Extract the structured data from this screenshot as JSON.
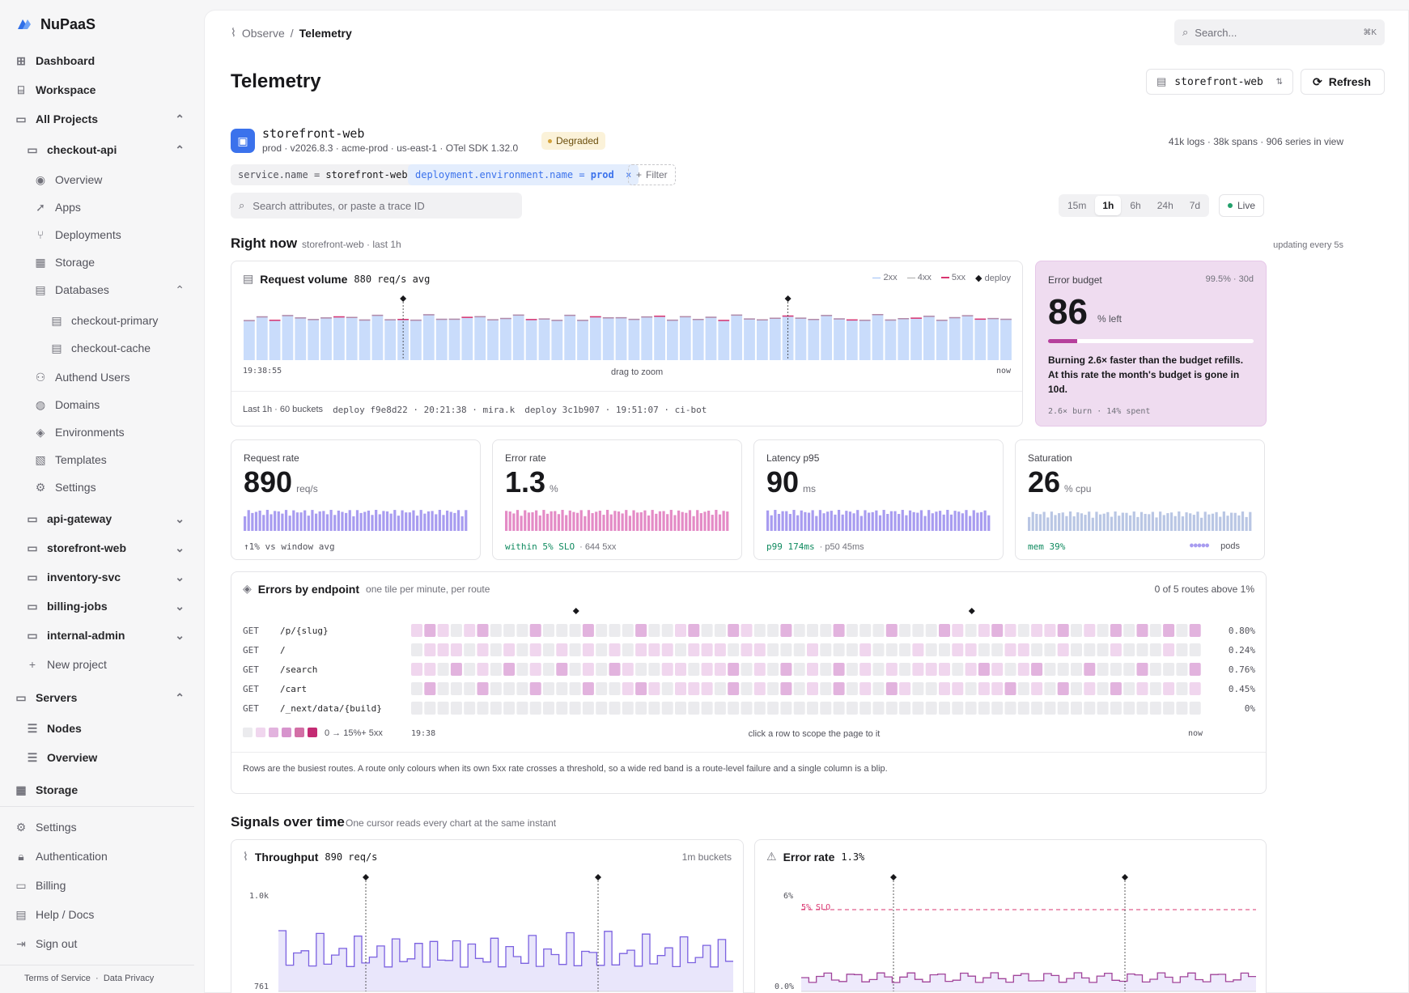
{
  "brand": {
    "name": "NuPaaS"
  },
  "sidebar": {
    "dashboard": "Dashboard",
    "workspace": "Workspace",
    "all_projects": "All Projects",
    "projects": [
      {
        "name": "checkout-api",
        "expanded": true
      },
      {
        "name": "api-gateway"
      },
      {
        "name": "storefront-web"
      },
      {
        "name": "inventory-svc"
      },
      {
        "name": "billing-jobs"
      },
      {
        "name": "internal-admin"
      }
    ],
    "checkout_items": [
      "Overview",
      "Apps",
      "Deployments",
      "Storage",
      "Databases"
    ],
    "databases": [
      "checkout-primary",
      "checkout-cache"
    ],
    "checkout_items2": [
      "Authend Users",
      "Domains",
      "Environments",
      "Templates",
      "Settings"
    ],
    "new_project": "New project",
    "servers": "Servers",
    "server_items": [
      "Nodes",
      "Overview"
    ],
    "storage": "Storage",
    "bottom": [
      "Settings",
      "Authentication",
      "Billing",
      "Help / Docs",
      "Sign out"
    ],
    "terms": "Terms of Service",
    "privacy": "Data Privacy",
    "sep": "·"
  },
  "header": {
    "breadcrumb_parent": "Observe",
    "breadcrumb_sep": "/",
    "breadcrumb_current": "Telemetry",
    "search_placeholder": "Search...",
    "search_kbd": "⌘K",
    "title": "Telemetry",
    "service_select": "storefront-web",
    "refresh": "Refresh"
  },
  "service": {
    "name": "storefront-web",
    "meta": "prod · v2026.8.3 · acme-prod · us-east-1 · OTel SDK 1.32.0",
    "status": "Degraded",
    "counts": "41k logs · 38k spans · 906 series in view"
  },
  "filters": [
    {
      "key": "service.name",
      "op": "=",
      "value": "storefront-web"
    },
    {
      "key": "deployment.environment.name",
      "op": "=",
      "value": "prod",
      "remove": "×"
    }
  ],
  "filter_add": "Filter",
  "attr_search_placeholder": "Search attributes, or paste a trace ID",
  "time_ranges": [
    "15m",
    "1h",
    "6h",
    "24h",
    "7d"
  ],
  "time_selected": "1h",
  "live": "Live",
  "right_now": {
    "title": "Right now",
    "subtitle": "storefront-web · last 1h",
    "updating": "updating every 5s"
  },
  "request_volume": {
    "title": "Request volume",
    "avg": "880 req/s avg",
    "legend": [
      "2xx",
      "4xx",
      "5xx",
      "deploy"
    ],
    "x_start": "19:38:55",
    "x_mid": "drag to zoom",
    "x_end": "now",
    "footer_left": "Last 1h · 60 buckets",
    "deploys": [
      "deploy f9e8d22 · 20:21:38 · mira.k",
      "deploy 3c1b907 · 19:51:07 · ci-bot"
    ],
    "colors": {
      "bar": "#c9dcfb",
      "err": "#d9346f"
    }
  },
  "error_budget": {
    "label": "Error budget",
    "target": "99.5% · 30d",
    "value": "86",
    "unit": "% left",
    "used_fraction": 0.14,
    "text": "Burning 2.6× faster than the budget refills. At this rate the month's budget is gone in 10d.",
    "foot": "2.6× burn · 14% spent"
  },
  "kpis": [
    {
      "label": "Request rate",
      "value": "890",
      "unit": "req/s",
      "foot": "↑1% vs window avg",
      "foot_b": "",
      "color": "#a89cf0"
    },
    {
      "label": "Error rate",
      "value": "1.3",
      "unit": "%",
      "foot": "within 5% SLO",
      "foot_b": "· 644 5xx",
      "color": "#e48bc6"
    },
    {
      "label": "Latency p95",
      "value": "90",
      "unit": "ms",
      "foot": "p99 174ms",
      "foot_b": "· p50 45ms",
      "color": "#a89cf0"
    },
    {
      "label": "Saturation",
      "value": "26",
      "unit": "% cpu",
      "foot": "mem 39%",
      "foot_b": "pods",
      "color": "#b9c6e4"
    }
  ],
  "errors": {
    "title": "Errors by endpoint",
    "subtitle": "one tile per minute, per route",
    "summary": "0 of 5 routes above 1%",
    "routes": [
      {
        "method": "GET",
        "path": "/p/{slug}",
        "pct": "0.80%"
      },
      {
        "method": "GET",
        "path": "/",
        "pct": "0.24%"
      },
      {
        "method": "GET",
        "path": "/search",
        "pct": "0.76%"
      },
      {
        "method": "GET",
        "path": "/cart",
        "pct": "0.45%"
      },
      {
        "method": "GET",
        "path": "/_next/data/{build}",
        "pct": "0%"
      }
    ],
    "scale": "0 → 15%+ 5xx",
    "x_start": "19:38",
    "x_mid": "click a row to scope the page to it",
    "x_end": "now",
    "note": "Rows are the busiest routes. A route only colours when its own 5xx rate crosses a threshold, so a wide red band is a route-level failure and a single column is a blip."
  },
  "signals": {
    "title": "Signals over time",
    "subtitle": "One cursor reads every chart at the same instant"
  },
  "throughput": {
    "title": "Throughput",
    "value": "890 req/s",
    "right": "1m buckets",
    "y_top": "1.0k",
    "y_bottom": "761"
  },
  "error_chart": {
    "title": "Error rate",
    "value": "1.3%",
    "y_top": "6%",
    "y_bottom": "0.0%",
    "slo": "5% SLO"
  }
}
